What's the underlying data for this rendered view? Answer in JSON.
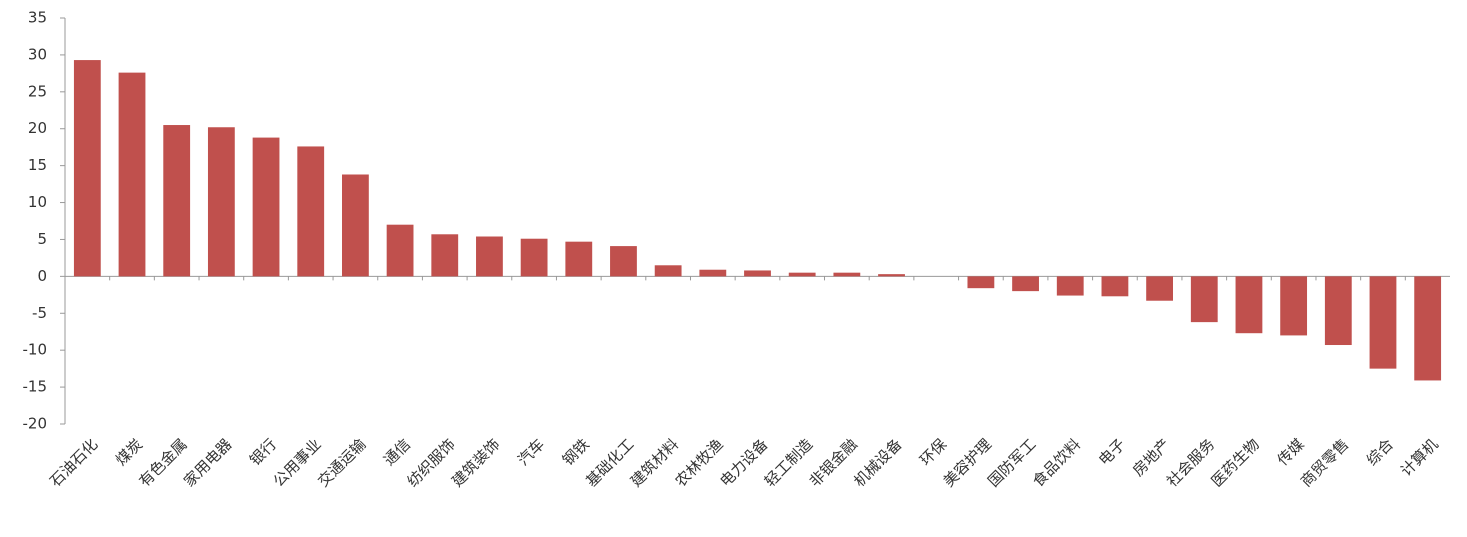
{
  "chart_data": {
    "type": "bar",
    "categories": [
      "石油石化",
      "煤炭",
      "有色金属",
      "家用电器",
      "银行",
      "公用事业",
      "交通运输",
      "通信",
      "纺织服饰",
      "建筑装饰",
      "汽车",
      "钢铁",
      "基础化工",
      "建筑材料",
      "农林牧渔",
      "电力设备",
      "轻工制造",
      "非银金融",
      "机械设备",
      "环保",
      "美容护理",
      "国防军工",
      "食品饮料",
      "电子",
      "房地产",
      "社会服务",
      "医药生物",
      "传媒",
      "商贸零售",
      "综合",
      "计算机"
    ],
    "values": [
      29.3,
      27.6,
      20.5,
      20.2,
      18.8,
      17.6,
      13.8,
      7.0,
      5.7,
      5.4,
      5.1,
      4.7,
      4.1,
      1.5,
      0.9,
      0.8,
      0.5,
      0.5,
      0.3,
      0.0,
      -1.6,
      -2.0,
      -2.6,
      -2.7,
      -3.3,
      -6.2,
      -7.7,
      -8.0,
      -9.3,
      -12.5,
      -14.1
    ],
    "color": "#c0504d",
    "ylim": [
      -20,
      35
    ],
    "yticks": [
      -20,
      -15,
      -10,
      -5,
      0,
      5,
      10,
      15,
      20,
      25,
      30,
      35
    ],
    "grid": false
  }
}
